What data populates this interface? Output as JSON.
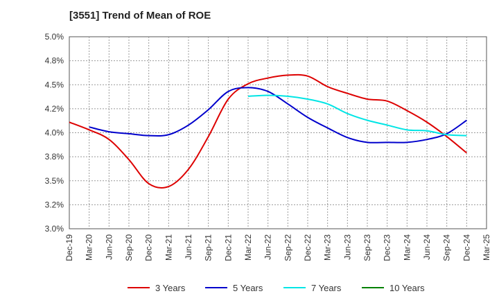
{
  "chart_data": {
    "type": "line",
    "title": "[3551]  Trend of Mean of ROE",
    "xlabel": "",
    "ylabel": "",
    "ylim": [
      3.0,
      5.0
    ],
    "yticks": [
      "3.0%",
      "3.2%",
      "3.5%",
      "3.8%",
      "4.0%",
      "4.2%",
      "4.5%",
      "4.8%",
      "5.0%"
    ],
    "ytick_values": [
      3.0,
      3.25,
      3.5,
      3.75,
      4.0,
      4.25,
      4.5,
      4.75,
      5.0
    ],
    "x_categories": [
      "Dec-19",
      "Mar-20",
      "Jun-20",
      "Sep-20",
      "Dec-20",
      "Mar-21",
      "Jun-21",
      "Sep-21",
      "Dec-21",
      "Mar-22",
      "Jun-22",
      "Sep-22",
      "Dec-22",
      "Mar-23",
      "Jun-23",
      "Sep-23",
      "Dec-23",
      "Mar-24",
      "Jun-24",
      "Sep-24",
      "Dec-24",
      "Mar-25"
    ],
    "grid": "dotted",
    "legend_position": "bottom",
    "series": [
      {
        "name": "3 Years",
        "color": "#dd0000",
        "values": [
          4.11,
          4.03,
          3.93,
          3.72,
          3.47,
          3.44,
          3.62,
          3.96,
          4.35,
          4.51,
          4.57,
          4.6,
          4.59,
          4.48,
          4.41,
          4.35,
          4.33,
          4.23,
          4.11,
          3.96,
          3.79,
          null
        ]
      },
      {
        "name": "5 Years",
        "color": "#0000cc",
        "values": [
          null,
          4.06,
          4.01,
          3.99,
          3.97,
          3.98,
          4.08,
          4.24,
          4.43,
          4.47,
          4.43,
          4.3,
          4.16,
          4.05,
          3.95,
          3.9,
          3.9,
          3.9,
          3.93,
          3.99,
          4.13,
          null
        ]
      },
      {
        "name": "7 Years",
        "color": "#00e5e5",
        "values": [
          null,
          null,
          null,
          null,
          null,
          null,
          null,
          null,
          null,
          4.38,
          4.39,
          4.38,
          4.35,
          4.3,
          4.2,
          4.13,
          4.08,
          4.03,
          4.02,
          3.98,
          3.97,
          null
        ]
      },
      {
        "name": "10 Years",
        "color": "#008000",
        "values": []
      }
    ]
  }
}
